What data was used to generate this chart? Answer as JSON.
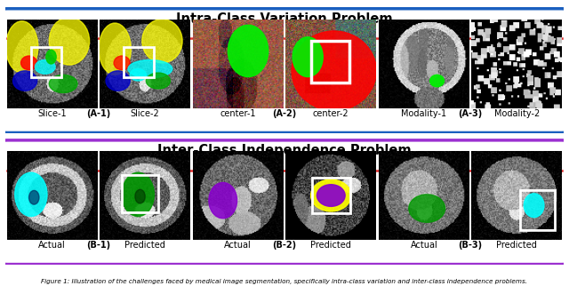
{
  "top_title": "Intra-Class Variation Problem",
  "bottom_title": "Inter-Class Independence Problem",
  "top_border_color": "#1a5fbf",
  "bottom_border_color": "#9B30D0",
  "inner_border_color": "#e03030",
  "background_color": "#ffffff",
  "label_fontsize": 7.0,
  "title_fontsize": 10.5,
  "caption": "Figure 1: Illustration of the challenges faced by medical image segmentation, specifically intra-class variation and inter-class independence problems."
}
